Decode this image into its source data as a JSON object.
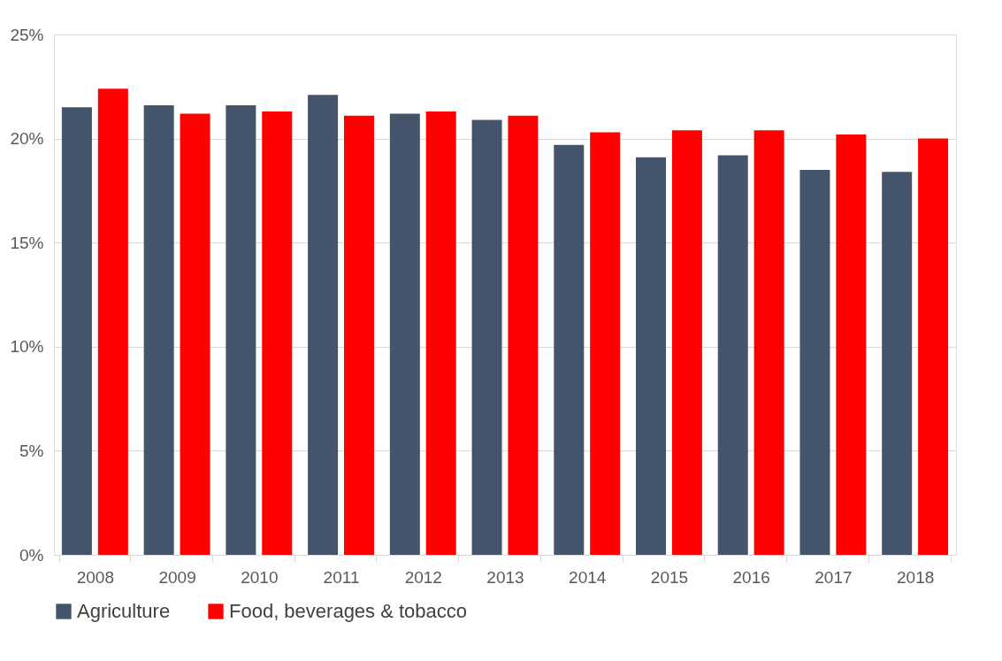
{
  "chart_data": {
    "type": "bar",
    "categories": [
      "2008",
      "2009",
      "2010",
      "2011",
      "2012",
      "2013",
      "2014",
      "2015",
      "2016",
      "2017",
      "2018"
    ],
    "series": [
      {
        "name": "Agriculture",
        "color": "#44546a",
        "values": [
          21.5,
          21.6,
          21.6,
          22.1,
          21.2,
          20.9,
          19.7,
          19.1,
          19.2,
          18.5,
          18.4
        ]
      },
      {
        "name": "Food, beverages & tobacco",
        "color": "#ff0000",
        "values": [
          22.4,
          21.2,
          21.3,
          21.1,
          21.3,
          21.1,
          20.3,
          20.4,
          20.4,
          20.2,
          20.0
        ]
      }
    ],
    "ylim": [
      0,
      25
    ],
    "yticks": [
      {
        "value": 0,
        "label": "0%"
      },
      {
        "value": 5,
        "label": "5%"
      },
      {
        "value": 10,
        "label": "10%"
      },
      {
        "value": 15,
        "label": "15%"
      },
      {
        "value": 20,
        "label": "20%"
      },
      {
        "value": 25,
        "label": "25%"
      }
    ],
    "grid": "y",
    "legend": "bottom"
  }
}
